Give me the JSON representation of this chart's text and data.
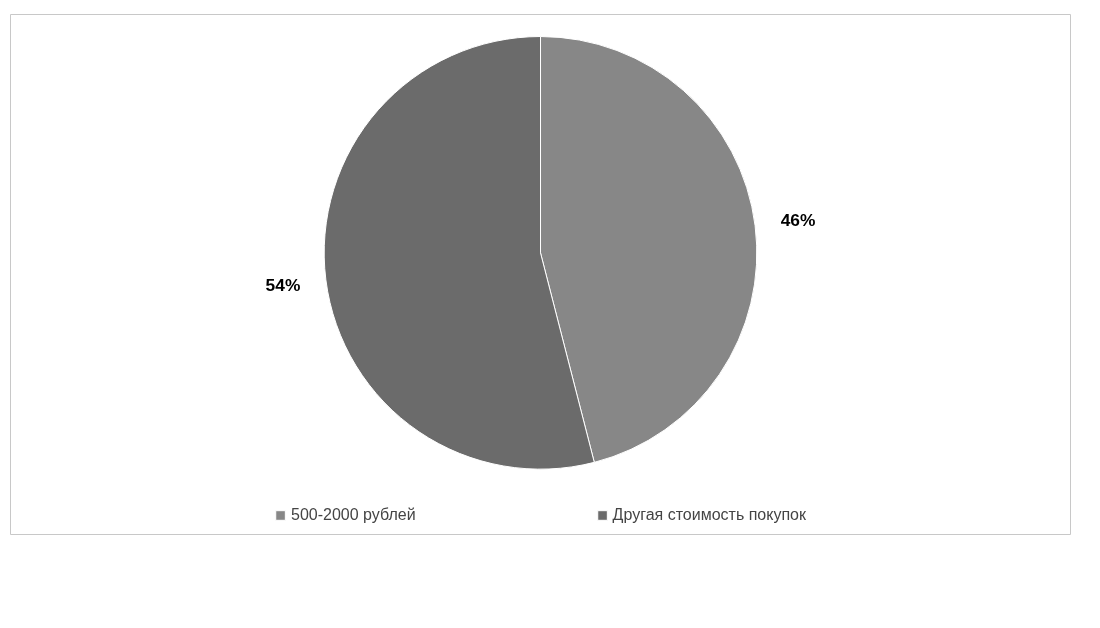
{
  "chart_data": {
    "type": "pie",
    "categories": [
      "500-2000 рублей",
      "Другая стоимость покупок"
    ],
    "values": [
      46,
      54
    ],
    "colors": [
      "#878787",
      "#6b6b6b"
    ],
    "value_labels": [
      "46%",
      "54%"
    ],
    "legend": "bottom"
  }
}
